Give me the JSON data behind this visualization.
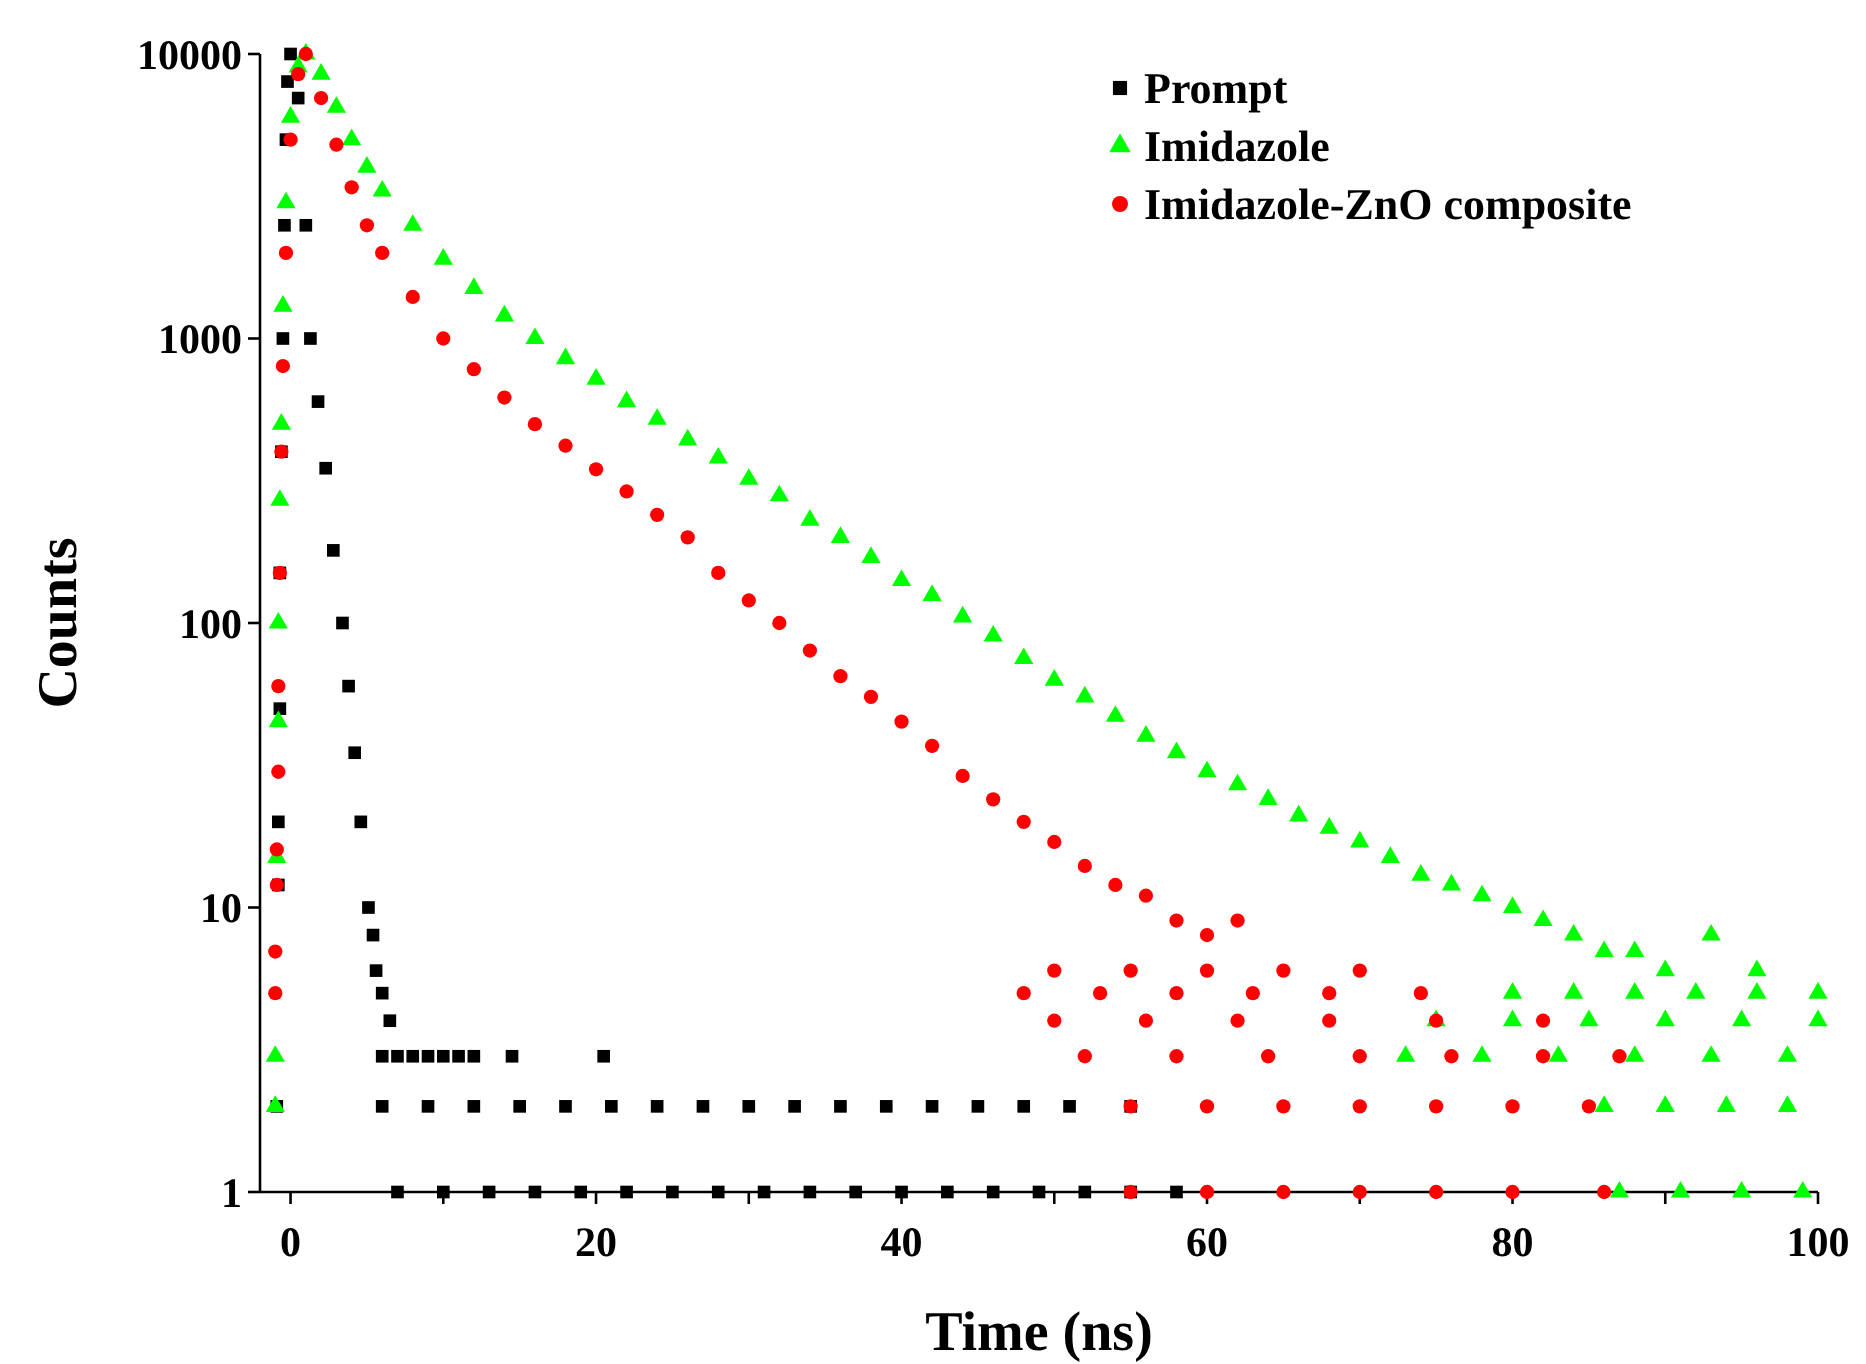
{
  "chart_data": {
    "type": "scatter",
    "xlabel": "Time (ns)",
    "ylabel": "Counts",
    "log": "y",
    "xlim": [
      -2,
      100
    ],
    "ylim": [
      1,
      10000
    ],
    "xticks": [
      0,
      {
        "value": 10,
        "label": null
      },
      20,
      {
        "value": 30,
        "label": null
      },
      40,
      {
        "value": 50,
        "label": null
      },
      60,
      {
        "value": 70,
        "label": null
      },
      80,
      {
        "value": 90,
        "label": null
      },
      100
    ],
    "yticks": [
      1,
      10,
      100,
      1000,
      10000
    ],
    "grid": false,
    "legend": "top right",
    "series": [
      {
        "name": "Prompt",
        "color": "#000000",
        "marker": "square",
        "x": [
          -0.9,
          -0.8,
          -0.8,
          -0.7,
          -0.7,
          -0.6,
          -0.5,
          -0.4,
          -0.3,
          -0.2,
          0,
          0.5,
          1,
          1.3,
          1.8,
          2.3,
          2.8,
          3.4,
          3.8,
          4.2,
          4.6,
          5.1,
          5.4,
          5.6,
          6,
          6.5,
          6,
          7,
          8,
          9,
          10,
          11,
          12,
          14.5,
          20.5,
          6,
          9,
          12,
          15,
          18,
          21,
          24,
          27,
          30,
          33,
          36,
          39,
          42,
          45,
          48,
          51,
          55,
          7,
          10,
          13,
          16,
          19,
          22,
          25,
          28,
          31,
          34,
          37,
          40,
          43,
          46,
          49,
          52,
          55,
          58
        ],
        "values": [
          2,
          12,
          20,
          50,
          150,
          400,
          1000,
          2500,
          5000,
          8000,
          10000,
          7000,
          2500,
          1000,
          600,
          350,
          180,
          100,
          60,
          35,
          20,
          10,
          8,
          6,
          5,
          4,
          3,
          3,
          3,
          3,
          3,
          3,
          3,
          3,
          3,
          2,
          2,
          2,
          2,
          2,
          2,
          2,
          2,
          2,
          2,
          2,
          2,
          2,
          2,
          2,
          2,
          2,
          1,
          1,
          1,
          1,
          1,
          1,
          1,
          1,
          1,
          1,
          1,
          1,
          1,
          1,
          1,
          1,
          1,
          1
        ]
      },
      {
        "name": "Imidazole",
        "color": "#00ff00",
        "marker": "triangle",
        "x": [
          -1,
          -1,
          -0.9,
          -0.8,
          -0.8,
          -0.7,
          -0.6,
          -0.5,
          -0.3,
          0,
          0.5,
          1,
          2,
          3,
          4,
          5,
          6,
          8,
          10,
          12,
          14,
          16,
          18,
          20,
          22,
          24,
          26,
          28,
          30,
          32,
          34,
          36,
          38,
          40,
          42,
          44,
          46,
          48,
          50,
          52,
          54,
          56,
          58,
          60,
          62,
          64,
          66,
          68,
          70,
          72,
          74,
          76,
          78,
          80,
          82,
          84,
          86,
          88,
          90,
          93,
          96,
          80,
          84,
          88,
          92,
          96,
          100,
          75,
          80,
          85,
          90,
          95,
          100,
          73,
          78,
          83,
          88,
          93,
          98,
          86,
          90,
          94,
          98,
          87,
          91,
          95,
          99
        ],
        "values": [
          2,
          3,
          15,
          45,
          100,
          270,
          500,
          1300,
          3000,
          6000,
          9000,
          10000,
          8500,
          6500,
          5000,
          4000,
          3300,
          2500,
          1900,
          1500,
          1200,
          1000,
          850,
          720,
          600,
          520,
          440,
          380,
          320,
          280,
          230,
          200,
          170,
          141,
          125,
          105,
          90,
          75,
          63,
          55,
          47,
          40,
          35,
          30,
          27,
          24,
          21,
          19,
          17,
          15,
          13,
          12,
          11,
          10,
          9,
          8,
          7,
          7,
          6,
          8,
          6,
          5,
          5,
          5,
          5,
          5,
          5,
          4,
          4,
          4,
          4,
          4,
          4,
          3,
          3,
          3,
          3,
          3,
          3,
          2,
          2,
          2,
          2,
          1,
          1,
          1,
          1
        ]
      },
      {
        "name": "Imidazole-ZnO composite",
        "color": "#ff0000",
        "marker": "circle",
        "x": [
          -1,
          -1,
          -0.9,
          -0.9,
          -0.8,
          -0.8,
          -0.7,
          -0.6,
          -0.5,
          -0.3,
          0,
          0.5,
          1,
          2,
          3,
          4,
          5,
          6,
          8,
          10,
          12,
          14,
          16,
          18,
          20,
          22,
          24,
          26,
          28,
          30,
          32,
          34,
          36,
          38,
          40,
          42,
          44,
          46,
          48,
          50,
          52,
          54,
          56,
          58,
          60,
          62,
          50,
          55,
          60,
          65,
          70,
          48,
          53,
          58,
          63,
          68,
          74,
          50,
          56,
          62,
          68,
          75,
          82,
          52,
          58,
          64,
          70,
          76,
          82,
          87,
          55,
          60,
          65,
          70,
          75,
          80,
          85,
          55,
          60,
          65,
          70,
          75,
          80,
          86
        ],
        "values": [
          5,
          7,
          12,
          16,
          30,
          60,
          150,
          400,
          800,
          2000,
          5000,
          8500,
          10000,
          7000,
          4800,
          3400,
          2500,
          2000,
          1400,
          1000,
          780,
          620,
          500,
          420,
          347,
          290,
          240,
          200,
          150,
          120,
          100,
          80,
          65,
          55,
          45,
          37,
          29,
          24,
          20,
          17,
          14,
          12,
          11,
          9,
          8,
          9,
          6,
          6,
          6,
          6,
          6,
          5,
          5,
          5,
          5,
          5,
          5,
          4,
          4,
          4,
          4,
          4,
          4,
          3,
          3,
          3,
          3,
          3,
          3,
          3,
          2,
          2,
          2,
          2,
          2,
          2,
          2,
          1,
          1,
          1,
          1,
          1,
          1,
          1
        ]
      }
    ]
  }
}
